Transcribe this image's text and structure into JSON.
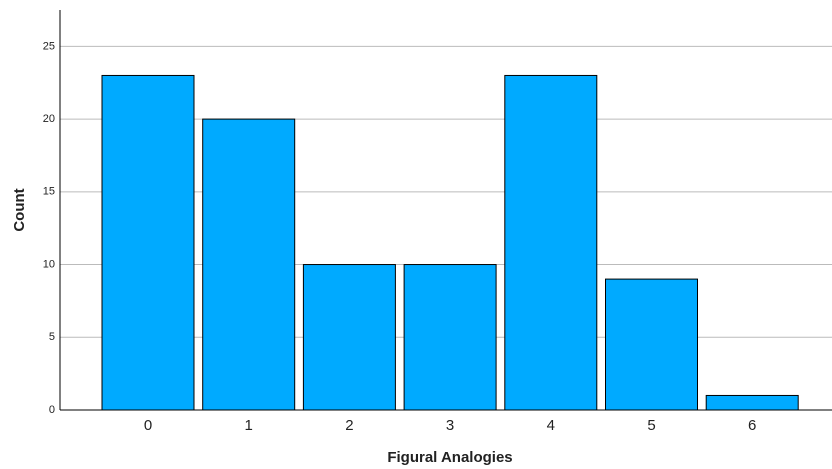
{
  "chart_data": {
    "type": "bar",
    "x_label": "Figural Analogies",
    "y_label": "Count",
    "categories": [
      "0",
      "1",
      "2",
      "3",
      "4",
      "5",
      "6"
    ],
    "values": [
      23,
      20,
      10,
      10,
      23,
      9,
      1
    ],
    "color": "#00aaff",
    "ylim": [
      0,
      27.5
    ],
    "yticks": [
      0,
      5,
      10,
      15,
      20,
      25
    ],
    "grid": true
  }
}
